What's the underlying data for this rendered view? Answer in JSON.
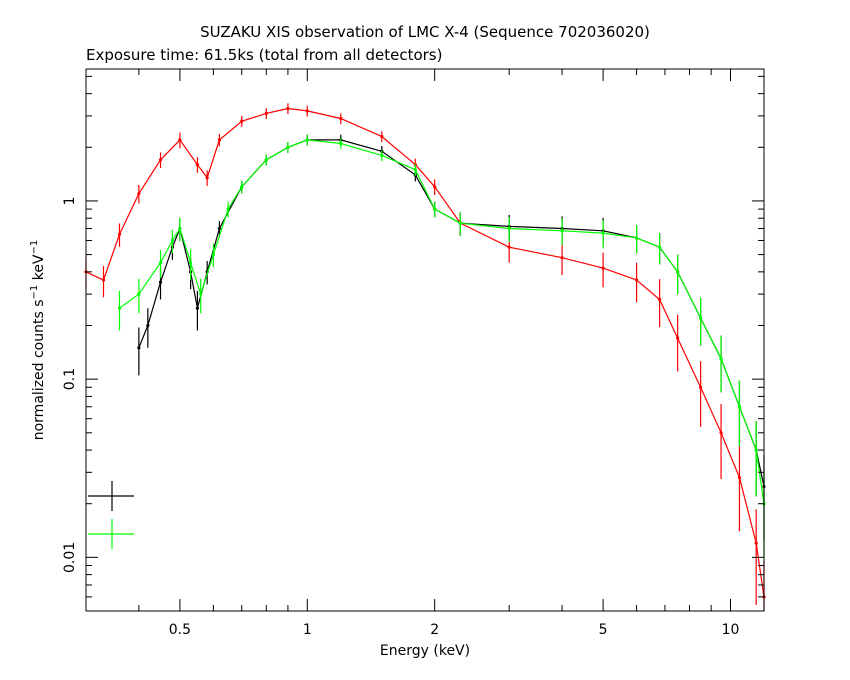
{
  "chart_data": {
    "type": "scatter",
    "title": "SUZAKU XIS observation of LMC X-4 (Sequence 702036020)",
    "subtitle": "Exposure time: 61.5ks (total from all detectors)",
    "xlabel": "Energy (keV)",
    "ylabel_main": "normalized counts s",
    "ylabel_mid": " keV",
    "ylabel_sup": "−1",
    "x_scale": "log",
    "y_scale": "log",
    "xlim": [
      0.3,
      12
    ],
    "ylim": [
      0.005,
      5.5
    ],
    "x_ticks": [
      {
        "value": 0.5,
        "label": "0.5"
      },
      {
        "value": 1,
        "label": "1"
      },
      {
        "value": 2,
        "label": "2"
      },
      {
        "value": 5,
        "label": "5"
      },
      {
        "value": 10,
        "label": "10"
      }
    ],
    "y_ticks": [
      {
        "value": 0.01,
        "label": "0.01"
      },
      {
        "value": 0.1,
        "label": "0.1"
      },
      {
        "value": 1,
        "label": "1"
      }
    ],
    "grid": false,
    "legend": "bottom-left (error-bar crosses, no text)",
    "series": [
      {
        "color": "#ff0000",
        "x": [
          0.3,
          0.33,
          0.36,
          0.4,
          0.45,
          0.5,
          0.55,
          0.58,
          0.62,
          0.7,
          0.8,
          0.9,
          1.0,
          1.2,
          1.5,
          1.8,
          2.0,
          2.3,
          3.0,
          4.0,
          5.0,
          6.0,
          6.8,
          7.5,
          8.5,
          9.5,
          10.5,
          11.5,
          12.0
        ],
        "y": [
          0.4,
          0.36,
          0.65,
          1.1,
          1.7,
          2.2,
          1.6,
          1.35,
          2.2,
          2.8,
          3.1,
          3.3,
          3.2,
          2.9,
          2.3,
          1.6,
          1.2,
          0.75,
          0.55,
          0.48,
          0.42,
          0.36,
          0.28,
          0.17,
          0.09,
          0.05,
          0.028,
          0.012,
          0.006
        ],
        "yerr_frac": [
          0.2,
          0.2,
          0.15,
          0.12,
          0.1,
          0.1,
          0.1,
          0.1,
          0.08,
          0.07,
          0.07,
          0.07,
          0.07,
          0.07,
          0.07,
          0.08,
          0.1,
          0.15,
          0.18,
          0.2,
          0.22,
          0.25,
          0.3,
          0.35,
          0.4,
          0.45,
          0.5,
          0.55,
          0.6
        ]
      },
      {
        "color": "#000000",
        "x": [
          0.4,
          0.42,
          0.45,
          0.48,
          0.5,
          0.53,
          0.55,
          0.58,
          0.62,
          0.7,
          0.8,
          0.9,
          1.0,
          1.2,
          1.5,
          1.8,
          2.0,
          2.3,
          3.0,
          4.0,
          5.0,
          6.0,
          6.8,
          7.5,
          8.5,
          9.5,
          10.5,
          11.5,
          12.0
        ],
        "y": [
          0.15,
          0.2,
          0.35,
          0.55,
          0.7,
          0.4,
          0.25,
          0.4,
          0.7,
          1.2,
          1.7,
          2.0,
          2.2,
          2.2,
          1.9,
          1.4,
          0.9,
          0.75,
          0.72,
          0.7,
          0.68,
          0.62,
          0.55,
          0.4,
          0.22,
          0.13,
          0.07,
          0.04,
          0.025
        ],
        "yerr_frac": [
          0.3,
          0.25,
          0.2,
          0.15,
          0.15,
          0.2,
          0.25,
          0.15,
          0.1,
          0.08,
          0.07,
          0.07,
          0.07,
          0.07,
          0.07,
          0.08,
          0.1,
          0.15,
          0.16,
          0.17,
          0.18,
          0.18,
          0.2,
          0.25,
          0.3,
          0.35,
          0.4,
          0.45,
          0.5
        ]
      },
      {
        "color": "#00ff00",
        "x": [
          0.36,
          0.4,
          0.45,
          0.48,
          0.5,
          0.53,
          0.56,
          0.6,
          0.65,
          0.7,
          0.8,
          0.9,
          1.0,
          1.2,
          1.5,
          1.8,
          2.0,
          2.3,
          3.0,
          4.0,
          5.0,
          6.0,
          6.8,
          7.5,
          8.5,
          9.5,
          10.5,
          11.5,
          12.0
        ],
        "y": [
          0.25,
          0.3,
          0.45,
          0.6,
          0.7,
          0.45,
          0.3,
          0.5,
          0.9,
          1.2,
          1.7,
          2.0,
          2.2,
          2.1,
          1.8,
          1.5,
          0.9,
          0.75,
          0.7,
          0.68,
          0.66,
          0.62,
          0.55,
          0.4,
          0.22,
          0.13,
          0.07,
          0.04,
          0.02
        ],
        "yerr_frac": [
          0.25,
          0.22,
          0.18,
          0.15,
          0.15,
          0.2,
          0.22,
          0.15,
          0.1,
          0.08,
          0.07,
          0.07,
          0.07,
          0.07,
          0.07,
          0.08,
          0.1,
          0.15,
          0.16,
          0.17,
          0.18,
          0.18,
          0.2,
          0.25,
          0.3,
          0.35,
          0.4,
          0.45,
          0.5
        ]
      }
    ]
  }
}
